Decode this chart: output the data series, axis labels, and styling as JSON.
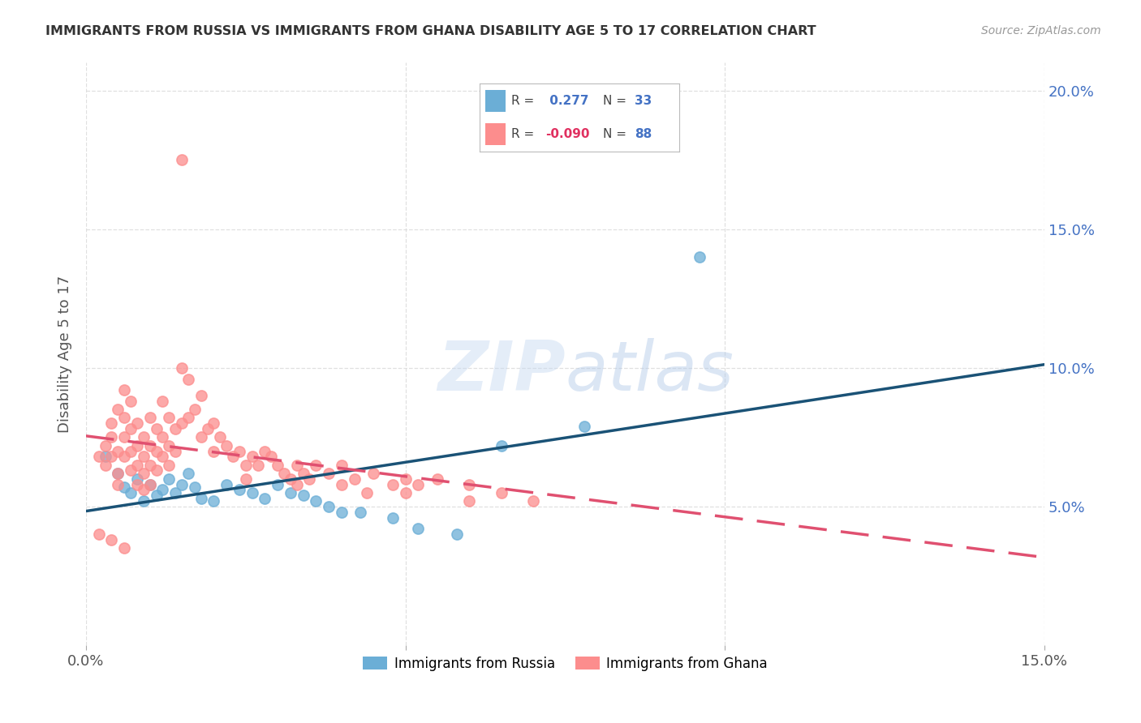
{
  "title": "IMMIGRANTS FROM RUSSIA VS IMMIGRANTS FROM GHANA DISABILITY AGE 5 TO 17 CORRELATION CHART",
  "source": "Source: ZipAtlas.com",
  "ylabel": "Disability Age 5 to 17",
  "xmin": 0.0,
  "xmax": 0.15,
  "ymin": 0.0,
  "ymax": 0.21,
  "yticks": [
    0.05,
    0.1,
    0.15,
    0.2
  ],
  "ytick_labels": [
    "5.0%",
    "10.0%",
    "15.0%",
    "20.0%"
  ],
  "russia_color": "#6baed6",
  "ghana_color": "#fc8d8d",
  "russia_line_color": "#1a5276",
  "ghana_line_color": "#e05070",
  "russia_scatter": [
    [
      0.003,
      0.068
    ],
    [
      0.005,
      0.062
    ],
    [
      0.006,
      0.057
    ],
    [
      0.007,
      0.055
    ],
    [
      0.008,
      0.06
    ],
    [
      0.009,
      0.052
    ],
    [
      0.01,
      0.058
    ],
    [
      0.011,
      0.054
    ],
    [
      0.012,
      0.056
    ],
    [
      0.013,
      0.06
    ],
    [
      0.014,
      0.055
    ],
    [
      0.015,
      0.058
    ],
    [
      0.016,
      0.062
    ],
    [
      0.017,
      0.057
    ],
    [
      0.018,
      0.053
    ],
    [
      0.02,
      0.052
    ],
    [
      0.022,
      0.058
    ],
    [
      0.024,
      0.056
    ],
    [
      0.026,
      0.055
    ],
    [
      0.028,
      0.053
    ],
    [
      0.03,
      0.058
    ],
    [
      0.032,
      0.055
    ],
    [
      0.034,
      0.054
    ],
    [
      0.036,
      0.052
    ],
    [
      0.038,
      0.05
    ],
    [
      0.04,
      0.048
    ],
    [
      0.043,
      0.048
    ],
    [
      0.048,
      0.046
    ],
    [
      0.052,
      0.042
    ],
    [
      0.058,
      0.04
    ],
    [
      0.065,
      0.072
    ],
    [
      0.078,
      0.079
    ],
    [
      0.096,
      0.14
    ]
  ],
  "ghana_scatter": [
    [
      0.002,
      0.068
    ],
    [
      0.003,
      0.072
    ],
    [
      0.003,
      0.065
    ],
    [
      0.004,
      0.08
    ],
    [
      0.004,
      0.075
    ],
    [
      0.004,
      0.068
    ],
    [
      0.005,
      0.085
    ],
    [
      0.005,
      0.07
    ],
    [
      0.005,
      0.062
    ],
    [
      0.005,
      0.058
    ],
    [
      0.006,
      0.092
    ],
    [
      0.006,
      0.082
    ],
    [
      0.006,
      0.075
    ],
    [
      0.006,
      0.068
    ],
    [
      0.007,
      0.088
    ],
    [
      0.007,
      0.078
    ],
    [
      0.007,
      0.07
    ],
    [
      0.007,
      0.063
    ],
    [
      0.008,
      0.08
    ],
    [
      0.008,
      0.072
    ],
    [
      0.008,
      0.065
    ],
    [
      0.008,
      0.058
    ],
    [
      0.009,
      0.075
    ],
    [
      0.009,
      0.068
    ],
    [
      0.009,
      0.062
    ],
    [
      0.009,
      0.056
    ],
    [
      0.01,
      0.082
    ],
    [
      0.01,
      0.072
    ],
    [
      0.01,
      0.065
    ],
    [
      0.01,
      0.058
    ],
    [
      0.011,
      0.078
    ],
    [
      0.011,
      0.07
    ],
    [
      0.011,
      0.063
    ],
    [
      0.012,
      0.088
    ],
    [
      0.012,
      0.075
    ],
    [
      0.012,
      0.068
    ],
    [
      0.013,
      0.082
    ],
    [
      0.013,
      0.072
    ],
    [
      0.013,
      0.065
    ],
    [
      0.014,
      0.078
    ],
    [
      0.014,
      0.07
    ],
    [
      0.015,
      0.1
    ],
    [
      0.015,
      0.08
    ],
    [
      0.016,
      0.096
    ],
    [
      0.016,
      0.082
    ],
    [
      0.017,
      0.085
    ],
    [
      0.018,
      0.09
    ],
    [
      0.018,
      0.075
    ],
    [
      0.019,
      0.078
    ],
    [
      0.02,
      0.08
    ],
    [
      0.02,
      0.07
    ],
    [
      0.021,
      0.075
    ],
    [
      0.022,
      0.072
    ],
    [
      0.023,
      0.068
    ],
    [
      0.024,
      0.07
    ],
    [
      0.025,
      0.065
    ],
    [
      0.025,
      0.06
    ],
    [
      0.026,
      0.068
    ],
    [
      0.027,
      0.065
    ],
    [
      0.028,
      0.07
    ],
    [
      0.029,
      0.068
    ],
    [
      0.03,
      0.065
    ],
    [
      0.031,
      0.062
    ],
    [
      0.032,
      0.06
    ],
    [
      0.033,
      0.065
    ],
    [
      0.033,
      0.058
    ],
    [
      0.034,
      0.062
    ],
    [
      0.035,
      0.06
    ],
    [
      0.036,
      0.065
    ],
    [
      0.038,
      0.062
    ],
    [
      0.04,
      0.058
    ],
    [
      0.04,
      0.065
    ],
    [
      0.042,
      0.06
    ],
    [
      0.044,
      0.055
    ],
    [
      0.045,
      0.062
    ],
    [
      0.048,
      0.058
    ],
    [
      0.05,
      0.06
    ],
    [
      0.05,
      0.055
    ],
    [
      0.052,
      0.058
    ],
    [
      0.055,
      0.06
    ],
    [
      0.06,
      0.058
    ],
    [
      0.06,
      0.052
    ],
    [
      0.065,
      0.055
    ],
    [
      0.07,
      0.052
    ],
    [
      0.015,
      0.175
    ],
    [
      0.002,
      0.04
    ],
    [
      0.004,
      0.038
    ],
    [
      0.006,
      0.035
    ]
  ],
  "background_color": "#ffffff",
  "grid_color": "#dddddd"
}
